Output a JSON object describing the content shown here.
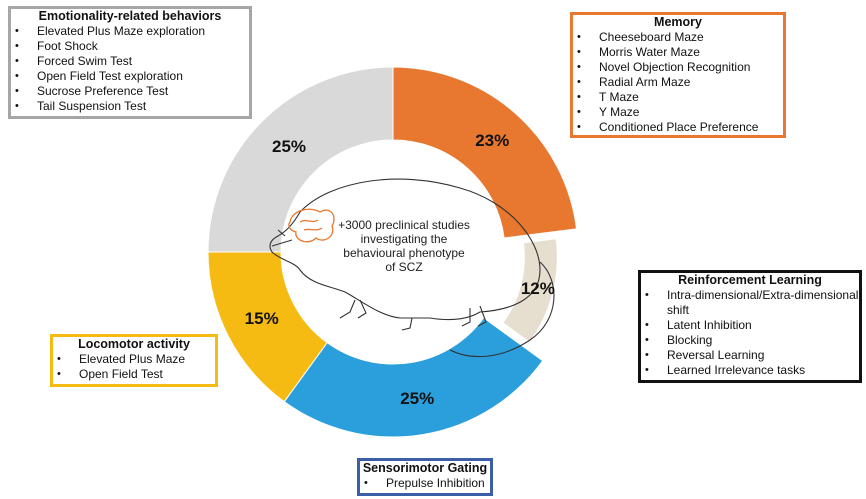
{
  "chart_data": {
    "type": "pie",
    "slices": [
      {
        "label": "Memory",
        "value": 23,
        "label_text": "23%",
        "color": "#E8782F"
      },
      {
        "label": "Reinforcement Learning",
        "value": 12,
        "label_text": "12%",
        "color": "#E6DECE"
      },
      {
        "label": "Sensorimotor Gating",
        "value": 25,
        "label_text": "25%",
        "color": "#2A9FDC"
      },
      {
        "label": "Locomotor activity",
        "value": 15,
        "label_text": "15%",
        "color": "#F6BB12"
      },
      {
        "label": "Emotionality-related behaviors",
        "value": 25,
        "label_text": "25%",
        "color": "#D9D9D9"
      }
    ]
  },
  "center_text": "+3000 preclinical studies investigating the behavioural phenotype of SCZ",
  "boxes": {
    "emotionality": {
      "title": "Emotionality-related behaviors",
      "border_color": "#A6A6A6",
      "items": [
        "Elevated Plus Maze exploration",
        "Foot Shock",
        "Forced Swim Test",
        "Open Field Test exploration",
        "Sucrose Preference Test",
        "Tail Suspension Test"
      ]
    },
    "memory": {
      "title": "Memory",
      "border_color": "#E8782F",
      "items": [
        "Cheeseboard Maze",
        "Morris Water Maze",
        "Novel Objection Recognition",
        "Radial Arm Maze",
        "T Maze",
        "Y Maze",
        "Conditioned Place Preference"
      ]
    },
    "reinforcement": {
      "title": "Reinforcement Learning",
      "border_color": "#111111",
      "items": [
        "Intra-dimensional/Extra-dimensional shift",
        "Latent Inhibition",
        "Blocking",
        "Reversal Learning",
        "Learned Irrelevance tasks"
      ]
    },
    "locomotor": {
      "title": "Locomotor activity",
      "border_color": "#F6BB12",
      "items": [
        "Elevated Plus Maze",
        "Open Field Test"
      ]
    },
    "sensorimotor": {
      "title": "Sensorimotor Gating",
      "border_color": "#3A5FA8",
      "items": [
        "Prepulse Inhibition"
      ]
    }
  }
}
